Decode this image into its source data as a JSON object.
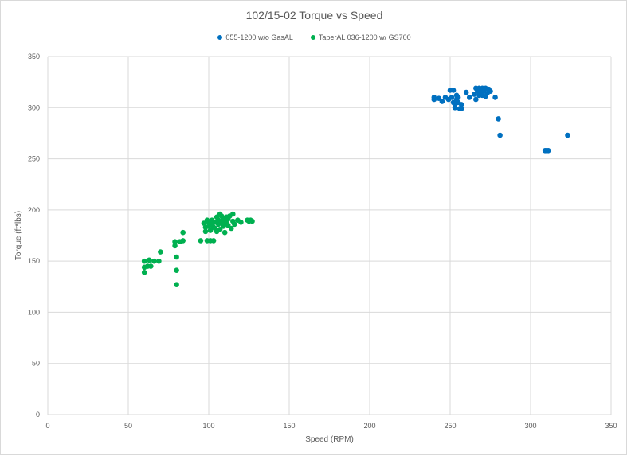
{
  "chart_data": {
    "type": "scatter",
    "title": "102/15-02 Torque vs Speed",
    "xlabel": "Speed (RPM)",
    "ylabel": "Torque (ft*lbs)",
    "xlim": [
      0,
      350
    ],
    "ylim": [
      0,
      350
    ],
    "x_ticks": [
      0,
      50,
      100,
      150,
      200,
      250,
      300,
      350
    ],
    "y_ticks": [
      0,
      50,
      100,
      150,
      200,
      250,
      300,
      350
    ],
    "grid": "major gridlines on both axes",
    "legend_position": "top",
    "series": [
      {
        "name": "055-1200 w/o GasAL",
        "color": "#0070c0",
        "points": [
          [
            240,
            310
          ],
          [
            240,
            308
          ],
          [
            243,
            309
          ],
          [
            245,
            306
          ],
          [
            247,
            310
          ],
          [
            249,
            308
          ],
          [
            250,
            317
          ],
          [
            252,
            317
          ],
          [
            251,
            310
          ],
          [
            252,
            305
          ],
          [
            253,
            303
          ],
          [
            253,
            300
          ],
          [
            254,
            308
          ],
          [
            254,
            312
          ],
          [
            255,
            305
          ],
          [
            255,
            310
          ],
          [
            256,
            299
          ],
          [
            257,
            303
          ],
          [
            257,
            299
          ],
          [
            260,
            315
          ],
          [
            262,
            310
          ],
          [
            265,
            313
          ],
          [
            266,
            308
          ],
          [
            266,
            319
          ],
          [
            267,
            316
          ],
          [
            268,
            312
          ],
          [
            268,
            319
          ],
          [
            269,
            315
          ],
          [
            270,
            319
          ],
          [
            270,
            312
          ],
          [
            271,
            316
          ],
          [
            272,
            319
          ],
          [
            272,
            311
          ],
          [
            273,
            314
          ],
          [
            274,
            318
          ],
          [
            275,
            316
          ],
          [
            278,
            310
          ],
          [
            280,
            289
          ],
          [
            281,
            273
          ],
          [
            309,
            258
          ],
          [
            310,
            258
          ],
          [
            311,
            258
          ],
          [
            323,
            273
          ]
        ]
      },
      {
        "name": "TaperAL 036-1200 w/ GS700",
        "color": "#00b050",
        "points": [
          [
            60,
            150
          ],
          [
            60,
            144
          ],
          [
            60,
            139
          ],
          [
            62,
            145
          ],
          [
            63,
            151
          ],
          [
            64,
            145
          ],
          [
            66,
            150
          ],
          [
            69,
            150
          ],
          [
            70,
            159
          ],
          [
            79,
            169
          ],
          [
            79,
            165
          ],
          [
            80,
            154
          ],
          [
            80,
            141
          ],
          [
            80,
            127
          ],
          [
            82,
            169
          ],
          [
            84,
            170
          ],
          [
            84,
            178
          ],
          [
            95,
            170
          ],
          [
            97,
            187
          ],
          [
            98,
            183
          ],
          [
            98,
            179
          ],
          [
            99,
            190
          ],
          [
            99,
            170
          ],
          [
            100,
            188
          ],
          [
            100,
            184
          ],
          [
            101,
            180
          ],
          [
            101,
            170
          ],
          [
            102,
            190
          ],
          [
            102,
            186
          ],
          [
            103,
            183
          ],
          [
            103,
            170
          ],
          [
            104,
            188
          ],
          [
            104,
            182
          ],
          [
            105,
            193
          ],
          [
            105,
            179
          ],
          [
            106,
            190
          ],
          [
            106,
            186
          ],
          [
            107,
            196
          ],
          [
            107,
            181
          ],
          [
            108,
            194
          ],
          [
            108,
            188
          ],
          [
            109,
            192
          ],
          [
            109,
            184
          ],
          [
            110,
            190
          ],
          [
            110,
            178
          ],
          [
            111,
            193
          ],
          [
            111,
            187
          ],
          [
            112,
            191
          ],
          [
            112,
            185
          ],
          [
            113,
            194
          ],
          [
            114,
            182
          ],
          [
            115,
            196
          ],
          [
            115,
            189
          ],
          [
            116,
            186
          ],
          [
            118,
            190
          ],
          [
            120,
            188
          ],
          [
            124,
            190
          ],
          [
            125,
            189
          ],
          [
            126,
            190
          ],
          [
            127,
            189
          ]
        ]
      }
    ]
  }
}
